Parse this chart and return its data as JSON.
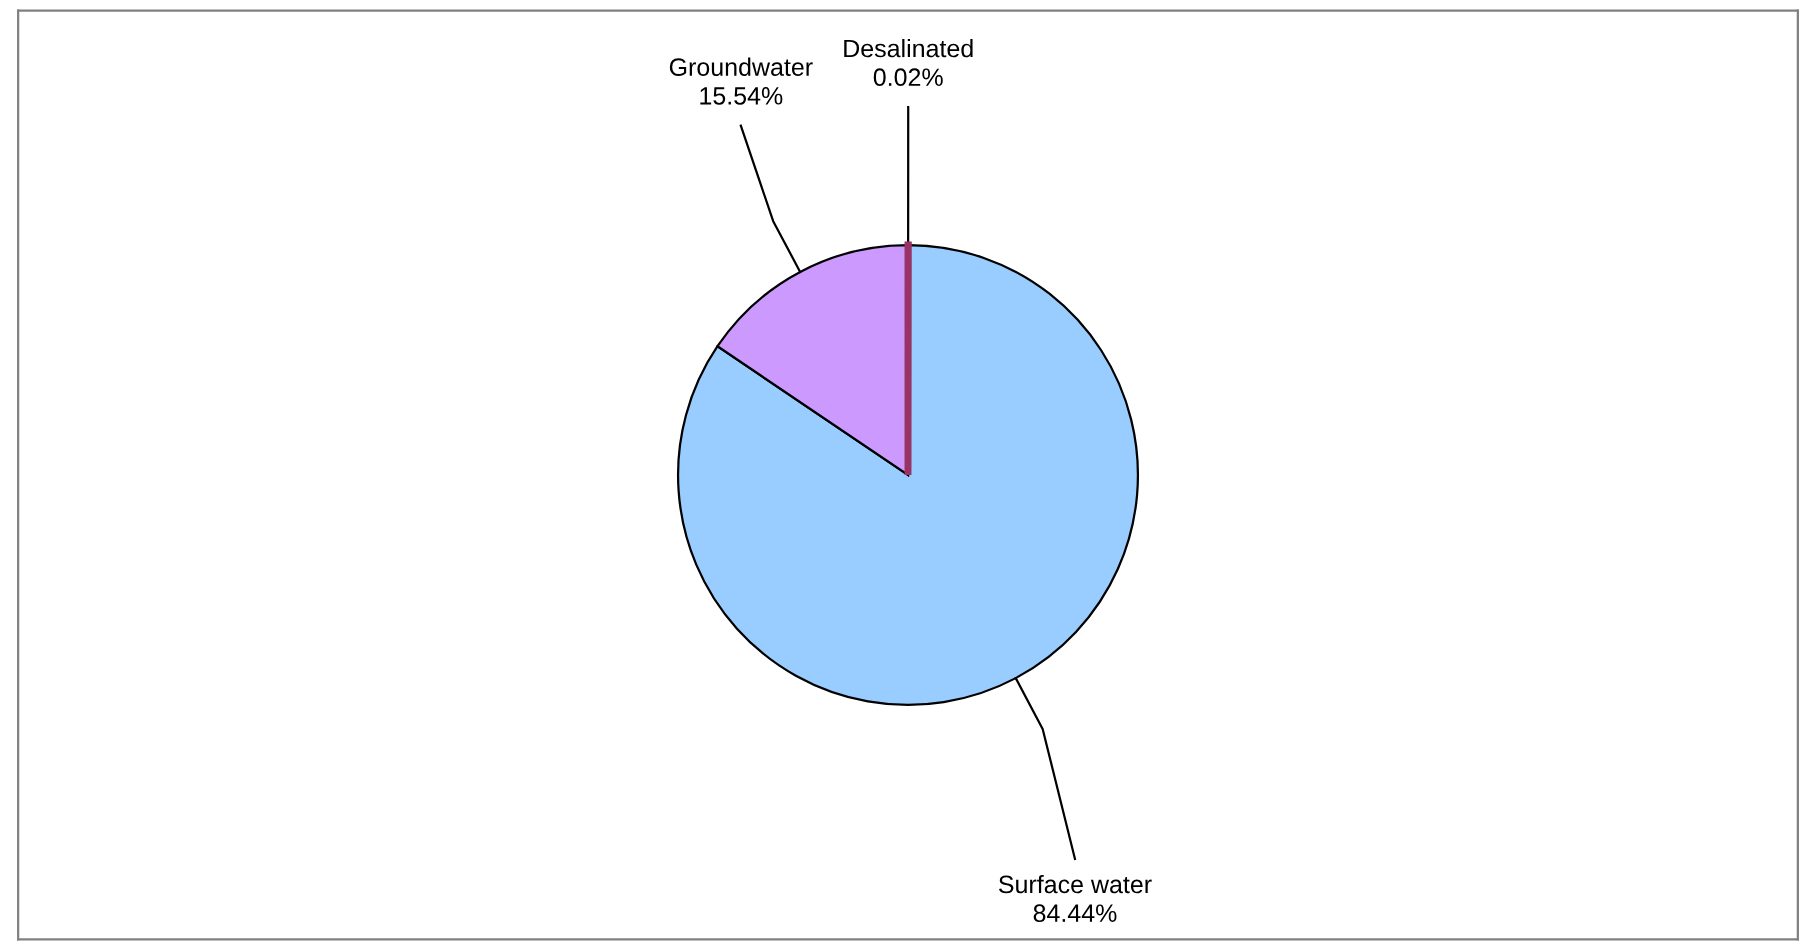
{
  "chart_data": {
    "type": "pie",
    "categories": [
      "Desalinated",
      "Surface water",
      "Groundwater"
    ],
    "values": [
      0.02,
      84.44,
      15.54
    ],
    "colors": [
      "#993366",
      "#99ccff",
      "#cc99ff"
    ],
    "value_labels": [
      "0.02%",
      "84.44%",
      "15.54%"
    ]
  }
}
